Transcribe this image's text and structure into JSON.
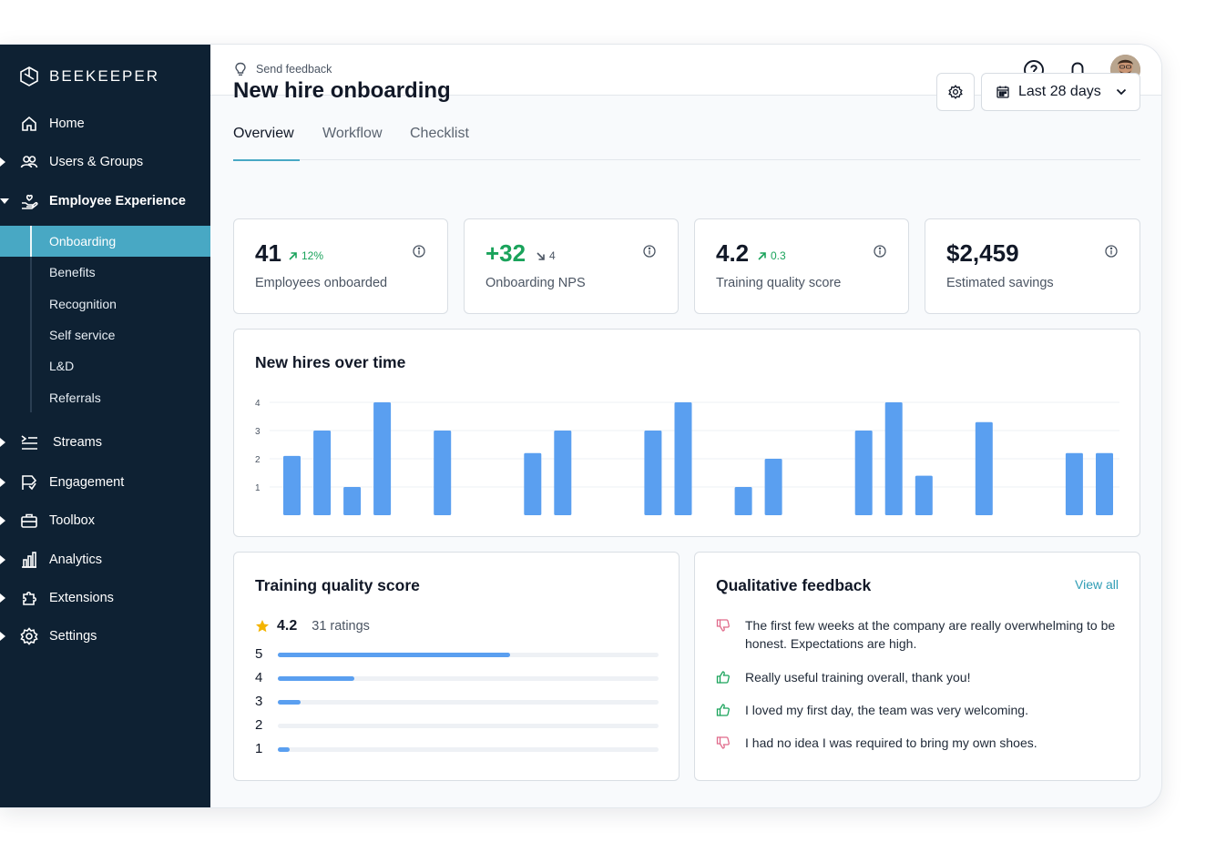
{
  "brand": {
    "name": "BEEKEEPER"
  },
  "sidebar": {
    "items": [
      {
        "label": "Home",
        "icon": "home-icon"
      },
      {
        "label": "Users & Groups",
        "icon": "users-icon"
      },
      {
        "label": "Employee Experience",
        "icon": "hand-heart-icon"
      },
      {
        "label": "Streams",
        "icon": "streams-icon"
      },
      {
        "label": "Engagement",
        "icon": "flag-icon"
      },
      {
        "label": "Toolbox",
        "icon": "toolbox-icon"
      },
      {
        "label": "Analytics",
        "icon": "analytics-icon"
      },
      {
        "label": "Extensions",
        "icon": "puzzle-icon"
      },
      {
        "label": "Settings",
        "icon": "gear-icon"
      }
    ],
    "subitems": [
      {
        "label": "Onboarding",
        "active": true
      },
      {
        "label": "Benefits"
      },
      {
        "label": "Recognition"
      },
      {
        "label": "Self service"
      },
      {
        "label": "L&D"
      },
      {
        "label": "Referrals"
      }
    ]
  },
  "topbar": {
    "feedback_label": "Send feedback"
  },
  "page": {
    "title": "New hire onboarding",
    "date_range": "Last 28 days",
    "tabs": [
      "Overview",
      "Workflow",
      "Checklist"
    ]
  },
  "kpis": [
    {
      "value": "41",
      "delta": "12%",
      "direction": "up",
      "label": "Employees onboarded"
    },
    {
      "value": "+32",
      "delta": "4",
      "direction": "down",
      "label": "Onboarding NPS"
    },
    {
      "value": "4.2",
      "delta": "0.3",
      "direction": "up",
      "label": "Training quality score"
    },
    {
      "value": "$2,459",
      "delta": "",
      "direction": "",
      "label": "Estimated savings"
    }
  ],
  "new_hires": {
    "title": "New hires over time"
  },
  "chart_data": {
    "type": "bar",
    "title": "New hires over time",
    "y_ticks": [
      1,
      2,
      3,
      4
    ],
    "ylim": [
      0,
      4
    ],
    "grid": true,
    "x": [
      1,
      2,
      3,
      4,
      5,
      6,
      7,
      8,
      9,
      10,
      11,
      12,
      13,
      14,
      15,
      16,
      17,
      18,
      19,
      20,
      21,
      22,
      23,
      24,
      25,
      26,
      27,
      28
    ],
    "values": [
      2.1,
      3,
      1,
      4,
      0,
      3,
      0,
      0,
      2.2,
      3,
      0,
      0,
      3,
      4,
      0,
      1,
      2,
      0,
      0,
      3,
      4,
      1.4,
      0,
      3.3,
      0,
      0,
      2.2,
      2.2
    ],
    "color": "#5a9ff0"
  },
  "training": {
    "title": "Training quality score",
    "score": "4.2",
    "ratings": "31 ratings",
    "distribution": [
      {
        "stars": "5",
        "fraction": 0.61
      },
      {
        "stars": "4",
        "fraction": 0.2
      },
      {
        "stars": "3",
        "fraction": 0.06
      },
      {
        "stars": "2",
        "fraction": 0
      },
      {
        "stars": "1",
        "fraction": 0.03
      }
    ]
  },
  "feedback": {
    "title": "Qualitative feedback",
    "view_all": "View all",
    "items": [
      {
        "text": "The first few weeks at the company are really overwhelming to be honest. Expectations are high.",
        "sentiment": "negative"
      },
      {
        "text": "Really useful training overall, thank you!",
        "sentiment": "positive"
      },
      {
        "text": "I loved my first day, the team was very welcoming.",
        "sentiment": "positive"
      },
      {
        "text": "I had no idea I was required to bring my own shoes.",
        "sentiment": "negative"
      }
    ]
  },
  "colors": {
    "sidebar": "#0e2133",
    "accent": "#48a8c4",
    "bar": "#5a9ff0",
    "positive": "#1aa35b",
    "negative": "#e06a8a"
  }
}
